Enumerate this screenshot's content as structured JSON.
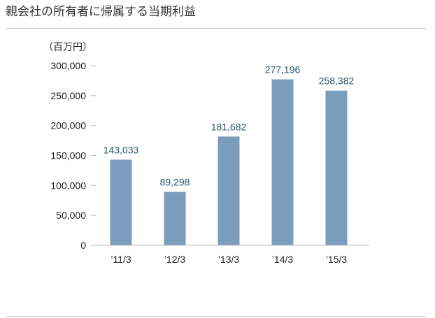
{
  "title": "親会社の所有者に帰属する当期利益",
  "chart_data": {
    "type": "bar",
    "title": "親会社の所有者に帰属する当期利益",
    "unit_label": "（百万円）",
    "categories": [
      "’11/3",
      "’12/3",
      "’13/3",
      "’14/3",
      "’15/3"
    ],
    "values": [
      143033,
      89298,
      181682,
      277196,
      258382
    ],
    "value_labels": [
      "143,033",
      "89,298",
      "181,682",
      "277,196",
      "258,382"
    ],
    "yticks": [
      0,
      50000,
      100000,
      150000,
      200000,
      250000,
      300000
    ],
    "ytick_labels": [
      "0",
      "50,000",
      "100,000",
      "150,000",
      "200,000",
      "250,000",
      "300,000"
    ],
    "ylim": [
      0,
      300000
    ],
    "xlabel": "",
    "ylabel": "",
    "grid": false,
    "legend": "none",
    "bar_color": "#7b9dbd",
    "label_color": "#2b5570"
  }
}
